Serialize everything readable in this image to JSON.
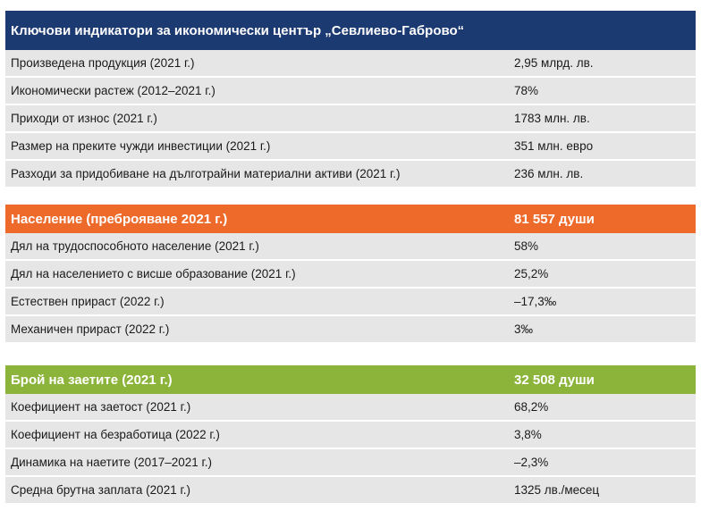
{
  "sections": [
    {
      "title": "Ключови индикатори за икономически център „Севлиево-Габрово“",
      "value": "",
      "color": "#1c3a72",
      "rows": [
        {
          "label": "Произведена продукция (2021 г.)",
          "value": "2,95 млрд. лв."
        },
        {
          "label": "Икономически растеж (2012–2021 г.)",
          "value": "78%"
        },
        {
          "label": "Приходи от износ (2021 г.)",
          "value": "1783 млн. лв."
        },
        {
          "label": "Размер на преките чужди инвестиции (2021 г.)",
          "value": "351 млн. евро"
        },
        {
          "label": "Разходи за придобиване на дълготрайни материални активи (2021 г.)",
          "value": "236 млн. лв."
        }
      ]
    },
    {
      "title": "Население (преброяване 2021 г.)",
      "value": "81 557 души",
      "color": "#ee6a2b",
      "rows": [
        {
          "label": "Дял на трудоспособното население (2021 г.)",
          "value": "58%"
        },
        {
          "label": "Дял на населението с висше образование (2021 г.)",
          "value": "25,2%"
        },
        {
          "label": "Естествен прираст (2022 г.)",
          "value": "–17,3‰"
        },
        {
          "label": "Механичен прираст (2022 г.)",
          "value": "3‰"
        }
      ]
    },
    {
      "title": "Брой на заетите (2021 г.)",
      "value": "32 508 души",
      "color": "#8cb43a",
      "rows": [
        {
          "label": "Коефициент на заетост (2021 г.)",
          "value": "68,2%"
        },
        {
          "label": "Коефициент на безработица (2022 г.)",
          "value": "3,8%"
        },
        {
          "label": "Динамика на наетите (2017–2021 г.)",
          "value": "–2,3%"
        },
        {
          "label": "Средна брутна заплата (2021 г.)",
          "value": "1325 лв./месец"
        }
      ]
    }
  ]
}
